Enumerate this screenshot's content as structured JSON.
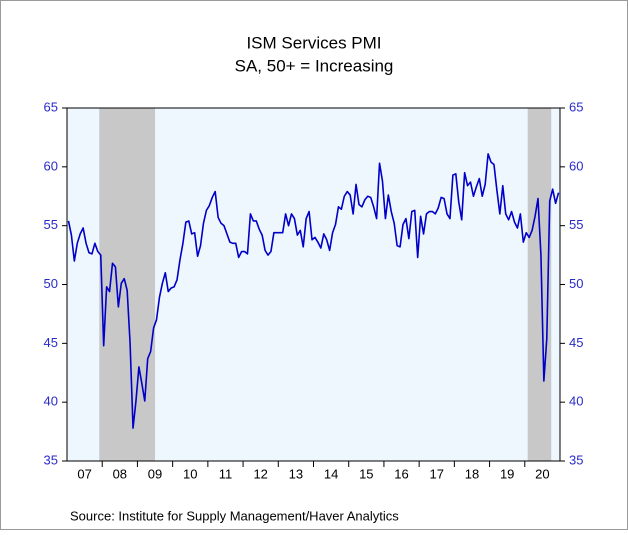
{
  "chart_data": {
    "type": "line",
    "title": "ISM Services PMI",
    "subtitle": "SA, 50+ = Increasing",
    "source": "Source:   Institute for Supply Management/Haver Analytics",
    "xticks": [
      "07",
      "08",
      "09",
      "10",
      "11",
      "12",
      "13",
      "14",
      "15",
      "16",
      "17",
      "18",
      "19",
      "20"
    ],
    "ylim": [
      35,
      65
    ],
    "yticks": [
      35,
      40,
      45,
      50,
      55,
      60,
      65
    ],
    "color": "#0000c8",
    "shade_color": "#c8c8c8",
    "shaded": [
      [
        11,
        29
      ],
      [
        157,
        164
      ]
    ],
    "values": [
      55.4,
      54.2,
      52.0,
      53.5,
      54.3,
      54.8,
      53.5,
      52.7,
      52.6,
      53.5,
      52.8,
      52.5,
      44.8,
      49.8,
      49.4,
      51.8,
      51.5,
      48.1,
      50.1,
      50.5,
      49.5,
      45.0,
      37.8,
      40.1,
      43.0,
      41.6,
      40.1,
      43.7,
      44.3,
      46.3,
      47.0,
      48.9,
      50.1,
      51.0,
      49.4,
      49.7,
      49.8,
      50.4,
      52.1,
      53.5,
      55.3,
      55.4,
      54.3,
      54.4,
      52.4,
      53.3,
      55.2,
      56.3,
      56.7,
      57.4,
      57.9,
      55.7,
      55.2,
      55.0,
      54.3,
      53.6,
      53.5,
      53.5,
      52.3,
      52.8,
      52.8,
      52.6,
      56.0,
      55.4,
      55.4,
      54.7,
      54.2,
      52.9,
      52.5,
      52.8,
      54.4,
      54.4,
      54.4,
      54.4,
      56.0,
      55.0,
      56.0,
      55.6,
      54.2,
      54.6,
      53.2,
      55.6,
      56.2,
      53.8,
      54.0,
      53.6,
      53.1,
      54.3,
      53.8,
      52.9,
      54.4,
      55.1,
      56.6,
      56.4,
      57.5,
      57.9,
      57.6,
      56.0,
      58.5,
      56.8,
      56.6,
      57.2,
      57.5,
      57.4,
      56.6,
      55.6,
      60.3,
      58.8,
      55.6,
      57.6,
      56.2,
      55.2,
      53.3,
      53.2,
      55.1,
      55.6,
      53.9,
      56.2,
      56.3,
      52.3,
      55.8,
      54.3,
      56.0,
      56.2,
      56.2,
      56.0,
      56.5,
      57.4,
      57.3,
      56.0,
      55.6,
      59.3,
      59.4,
      57.0,
      55.5,
      59.5,
      58.4,
      58.7,
      57.5,
      58.3,
      59.0,
      57.5,
      58.5,
      61.1,
      60.4,
      60.2,
      58.0,
      56.0,
      58.4,
      56.0,
      55.5,
      56.2,
      55.3,
      54.8,
      56.0,
      53.6,
      54.4,
      54.0,
      54.6,
      55.8,
      57.3,
      52.5,
      41.8,
      45.4,
      57.1,
      58.1,
      56.9,
      57.8
    ]
  }
}
